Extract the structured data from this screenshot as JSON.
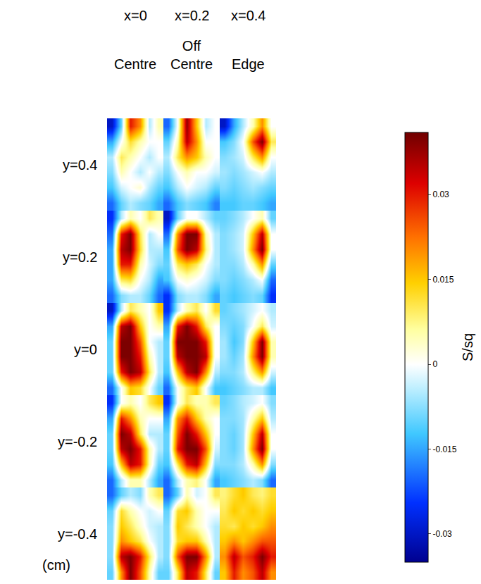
{
  "chart_data": {
    "type": "heatmap",
    "columns": [
      {
        "label": "x=0",
        "name": "Centre"
      },
      {
        "label": "x=0.2",
        "name": "Off Centre"
      },
      {
        "label": "x=0.4",
        "name": "Edge"
      }
    ],
    "rows": [
      "y=0.4",
      "y=0.2",
      "y=0",
      "y=-0.2",
      "y=-0.4"
    ],
    "row_unit": "(cm)",
    "colorbar": {
      "title": "S/sq",
      "range": [
        -0.035,
        0.041
      ],
      "ticks": [
        0.03,
        0.015,
        0,
        -0.015,
        -0.03
      ]
    },
    "cells": [
      [
        [
          [
            -0.03,
            -0.01,
            0.03,
            0.02,
            -0.005,
            0.005
          ],
          [
            -0.015,
            0.0,
            0.012,
            0.005,
            0.0,
            0.0
          ],
          [
            -0.005,
            0.01,
            0.005,
            0.0,
            -0.005,
            0.0
          ],
          [
            -0.008,
            0.005,
            0.0,
            -0.005,
            0.0,
            -0.005
          ],
          [
            -0.012,
            -0.003,
            0.0,
            0.003,
            -0.005,
            -0.01
          ],
          [
            -0.02,
            -0.01,
            -0.005,
            -0.008,
            -0.01,
            -0.015
          ]
        ],
        [
          [
            -0.02,
            0.0,
            0.038,
            0.015,
            -0.005,
            0.0
          ],
          [
            -0.01,
            0.005,
            0.035,
            0.02,
            0.0,
            0.0
          ],
          [
            -0.005,
            0.01,
            0.02,
            0.015,
            0.005,
            0.0
          ],
          [
            -0.008,
            0.0,
            0.005,
            0.0,
            0.0,
            -0.003
          ],
          [
            -0.012,
            -0.005,
            0.0,
            -0.003,
            -0.005,
            -0.01
          ],
          [
            -0.02,
            -0.012,
            -0.008,
            -0.01,
            -0.012,
            -0.018
          ]
        ],
        [
          [
            -0.03,
            -0.015,
            -0.005,
            0.005,
            0.02,
            0.0
          ],
          [
            -0.012,
            -0.008,
            0.0,
            0.025,
            0.04,
            0.01
          ],
          [
            -0.008,
            -0.006,
            -0.003,
            0.01,
            0.02,
            0.0
          ],
          [
            -0.006,
            -0.008,
            -0.006,
            -0.003,
            0.0,
            -0.005
          ],
          [
            -0.008,
            -0.01,
            -0.008,
            -0.006,
            -0.008,
            -0.01
          ],
          [
            -0.012,
            -0.012,
            -0.01,
            -0.01,
            -0.012,
            -0.015
          ]
        ]
      ],
      [
        [
          [
            -0.025,
            -0.005,
            0.005,
            0.0,
            0.01,
            0.005
          ],
          [
            -0.02,
            0.03,
            0.04,
            0.01,
            -0.005,
            0.0
          ],
          [
            -0.015,
            0.035,
            0.04,
            0.012,
            -0.005,
            -0.005
          ],
          [
            -0.015,
            0.03,
            0.03,
            0.005,
            -0.003,
            -0.008
          ],
          [
            -0.015,
            0.01,
            0.012,
            0.0,
            -0.005,
            -0.015
          ],
          [
            -0.02,
            -0.008,
            -0.005,
            -0.005,
            -0.01,
            -0.02
          ]
        ],
        [
          [
            -0.03,
            -0.01,
            0.0,
            0.0,
            -0.005,
            -0.01
          ],
          [
            -0.02,
            0.02,
            0.04,
            0.04,
            0.005,
            -0.005
          ],
          [
            -0.012,
            0.025,
            0.04,
            0.035,
            0.008,
            -0.005
          ],
          [
            -0.01,
            0.01,
            0.015,
            0.01,
            0.0,
            -0.005
          ],
          [
            -0.012,
            0.0,
            0.003,
            0.0,
            -0.003,
            -0.008
          ],
          [
            -0.025,
            -0.008,
            -0.005,
            -0.005,
            -0.008,
            -0.015
          ]
        ],
        [
          [
            -0.01,
            -0.008,
            -0.005,
            0.0,
            0.005,
            -0.01
          ],
          [
            -0.008,
            -0.006,
            -0.003,
            0.015,
            0.035,
            0.0
          ],
          [
            -0.008,
            -0.006,
            -0.003,
            0.02,
            0.04,
            0.0
          ],
          [
            -0.008,
            -0.008,
            -0.005,
            0.005,
            0.02,
            -0.01
          ],
          [
            -0.008,
            -0.01,
            -0.008,
            -0.005,
            0.0,
            -0.02
          ],
          [
            -0.01,
            -0.012,
            -0.01,
            -0.008,
            -0.01,
            -0.025
          ]
        ]
      ],
      [
        [
          [
            -0.03,
            -0.005,
            0.01,
            0.005,
            0.0,
            0.015
          ],
          [
            -0.015,
            0.035,
            0.04,
            0.015,
            0.0,
            0.005
          ],
          [
            -0.01,
            0.04,
            0.04,
            0.025,
            0.0,
            -0.005
          ],
          [
            -0.01,
            0.04,
            0.04,
            0.03,
            0.005,
            -0.005
          ],
          [
            -0.01,
            0.03,
            0.04,
            0.035,
            0.01,
            -0.005
          ],
          [
            -0.02,
            0.0,
            0.015,
            0.012,
            0.0,
            -0.01
          ]
        ],
        [
          [
            -0.025,
            -0.005,
            0.005,
            0.01,
            0.0,
            0.012
          ],
          [
            -0.015,
            0.03,
            0.04,
            0.03,
            0.01,
            0.0
          ],
          [
            -0.01,
            0.04,
            0.04,
            0.04,
            0.03,
            0.0
          ],
          [
            -0.01,
            0.035,
            0.04,
            0.04,
            0.035,
            0.0
          ],
          [
            -0.012,
            0.015,
            0.035,
            0.04,
            0.02,
            -0.005
          ],
          [
            -0.02,
            0.0,
            0.01,
            0.015,
            0.0,
            -0.012
          ]
        ],
        [
          [
            -0.01,
            -0.008,
            -0.006,
            -0.003,
            0.0,
            -0.005
          ],
          [
            -0.008,
            -0.01,
            -0.008,
            0.0,
            0.01,
            -0.003
          ],
          [
            -0.006,
            -0.012,
            -0.008,
            0.015,
            0.04,
            0.005
          ],
          [
            -0.006,
            -0.01,
            -0.006,
            0.02,
            0.04,
            0.005
          ],
          [
            -0.008,
            -0.008,
            -0.005,
            0.008,
            0.02,
            -0.003
          ],
          [
            -0.012,
            -0.01,
            -0.008,
            -0.005,
            -0.005,
            -0.012
          ]
        ]
      ],
      [
        [
          [
            -0.025,
            0.0,
            0.005,
            0.0,
            0.01,
            0.015
          ],
          [
            -0.015,
            0.03,
            0.02,
            0.005,
            0.0,
            0.0
          ],
          [
            -0.01,
            0.04,
            0.035,
            0.01,
            -0.005,
            -0.005
          ],
          [
            -0.01,
            0.035,
            0.04,
            0.03,
            0.005,
            -0.005
          ],
          [
            -0.012,
            0.015,
            0.035,
            0.03,
            0.005,
            -0.01
          ],
          [
            -0.02,
            -0.005,
            0.005,
            0.005,
            -0.005,
            -0.015
          ]
        ],
        [
          [
            -0.025,
            0.0,
            0.01,
            0.005,
            0.005,
            0.01
          ],
          [
            -0.015,
            0.02,
            0.03,
            0.015,
            0.005,
            0.0
          ],
          [
            -0.01,
            0.025,
            0.04,
            0.03,
            0.015,
            0.0
          ],
          [
            -0.01,
            0.03,
            0.04,
            0.04,
            0.025,
            -0.003
          ],
          [
            -0.012,
            0.01,
            0.03,
            0.035,
            0.015,
            -0.008
          ],
          [
            -0.02,
            -0.005,
            0.005,
            0.008,
            0.0,
            -0.015
          ]
        ],
        [
          [
            -0.01,
            -0.008,
            -0.005,
            -0.003,
            0.0,
            -0.008
          ],
          [
            -0.008,
            -0.008,
            -0.006,
            0.005,
            0.015,
            -0.005
          ],
          [
            -0.008,
            -0.01,
            -0.006,
            0.015,
            0.035,
            0.0
          ],
          [
            -0.008,
            -0.01,
            -0.006,
            0.02,
            0.04,
            0.0
          ],
          [
            -0.008,
            -0.008,
            -0.005,
            0.005,
            0.02,
            -0.008
          ],
          [
            -0.012,
            -0.01,
            -0.008,
            -0.005,
            -0.008,
            -0.02
          ]
        ]
      ],
      [
        [
          [
            -0.02,
            -0.01,
            -0.005,
            -0.008,
            0.005,
            0.01
          ],
          [
            -0.01,
            0.012,
            0.005,
            0.0,
            -0.003,
            0.0
          ],
          [
            -0.008,
            0.015,
            0.01,
            0.003,
            -0.003,
            -0.005
          ],
          [
            -0.008,
            0.02,
            0.015,
            0.01,
            0.0,
            -0.005
          ],
          [
            -0.008,
            0.035,
            0.04,
            0.03,
            0.01,
            -0.005
          ],
          [
            -0.01,
            0.02,
            0.04,
            0.025,
            0.005,
            -0.01
          ]
        ],
        [
          [
            -0.02,
            -0.01,
            0.005,
            -0.003,
            0.0,
            0.01
          ],
          [
            -0.01,
            0.012,
            0.015,
            0.005,
            0.0,
            0.0
          ],
          [
            -0.008,
            0.015,
            0.01,
            0.005,
            0.0,
            -0.005
          ],
          [
            -0.008,
            0.012,
            0.015,
            0.015,
            0.005,
            -0.005
          ],
          [
            -0.008,
            0.025,
            0.04,
            0.04,
            0.02,
            -0.005
          ],
          [
            -0.01,
            0.01,
            0.035,
            0.03,
            0.01,
            -0.01
          ]
        ],
        [
          [
            0.008,
            0.012,
            0.015,
            0.01,
            0.008,
            0.012
          ],
          [
            0.01,
            0.015,
            0.012,
            0.015,
            0.012,
            0.015
          ],
          [
            0.012,
            0.01,
            0.015,
            0.012,
            0.015,
            0.02
          ],
          [
            0.015,
            0.02,
            0.015,
            0.02,
            0.025,
            0.025
          ],
          [
            0.02,
            0.035,
            0.025,
            0.03,
            0.04,
            0.03
          ],
          [
            0.015,
            0.03,
            0.02,
            0.025,
            0.035,
            0.02
          ]
        ]
      ]
    ]
  }
}
